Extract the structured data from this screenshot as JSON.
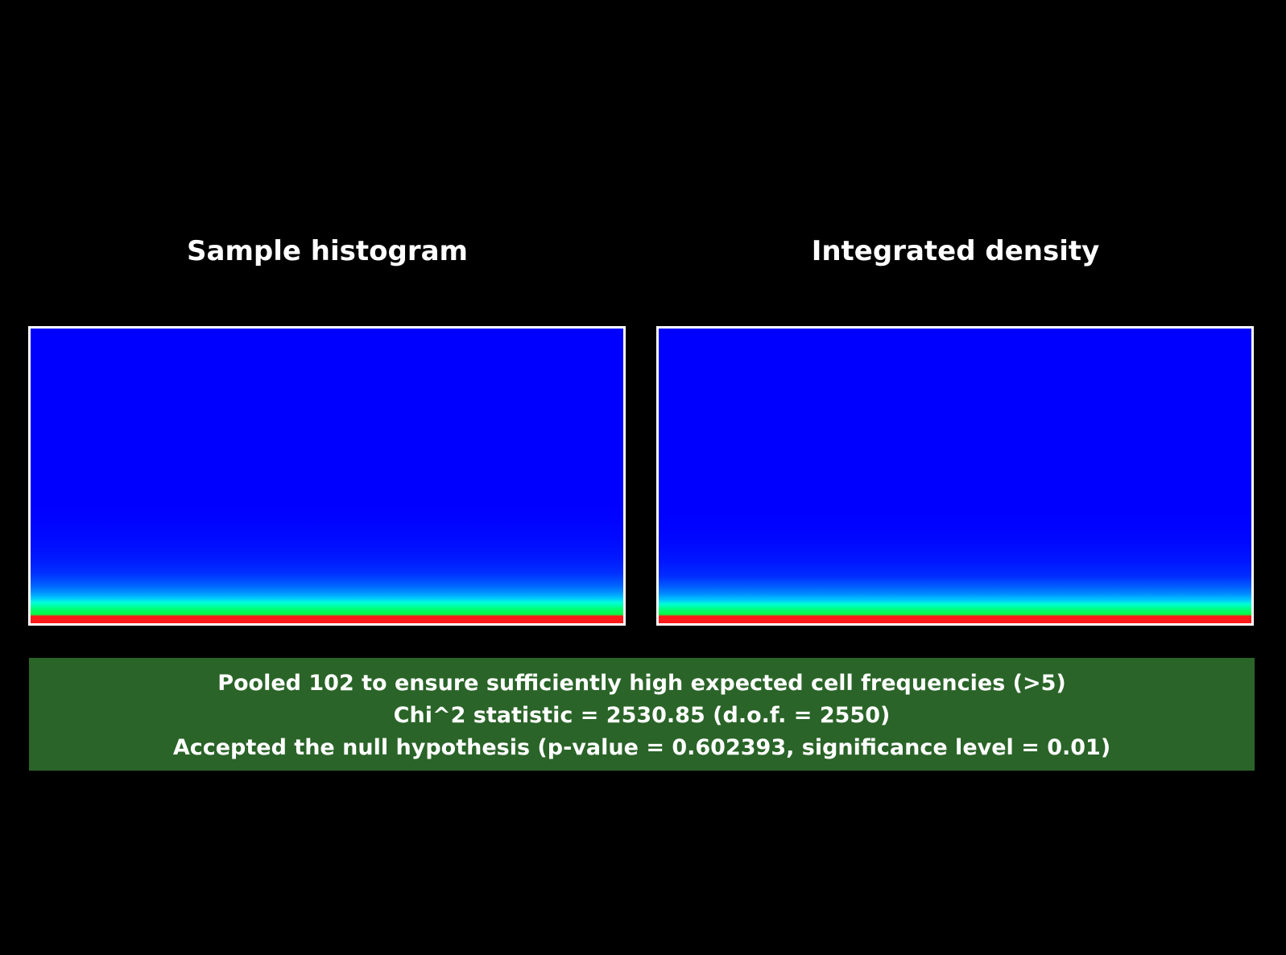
{
  "colors": {
    "background": "#000000",
    "frame_border": "#ffffff",
    "heatmap_base": "#0000ff",
    "result_box": "#2a6428",
    "text": "#ffffff"
  },
  "panels": [
    {
      "title": "Sample histogram"
    },
    {
      "title": "Integrated density"
    }
  ],
  "result": {
    "line1": "Pooled 102 to ensure sufficiently high expected cell frequencies (>5)",
    "line2": "Chi^2 statistic = 2530.85 (d.o.f. = 2550)",
    "line3": "Accepted the null hypothesis (p-value = 0.602393, significance level = 0.01)"
  }
}
